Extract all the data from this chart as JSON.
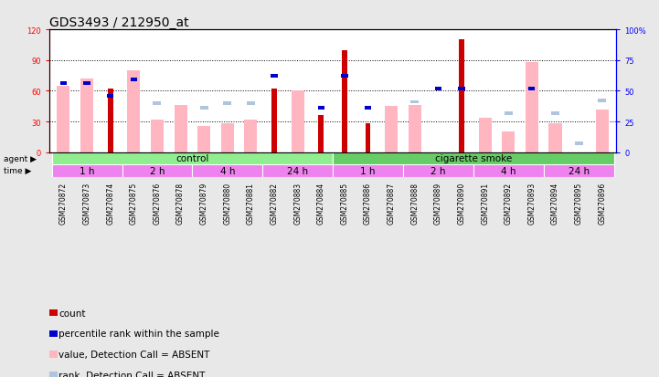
{
  "title": "GDS3493 / 212950_at",
  "samples": [
    "GSM270872",
    "GSM270873",
    "GSM270874",
    "GSM270875",
    "GSM270876",
    "GSM270878",
    "GSM270879",
    "GSM270880",
    "GSM270881",
    "GSM270882",
    "GSM270883",
    "GSM270884",
    "GSM270885",
    "GSM270886",
    "GSM270887",
    "GSM270888",
    "GSM270889",
    "GSM270890",
    "GSM270891",
    "GSM270892",
    "GSM270893",
    "GSM270894",
    "GSM270895",
    "GSM270896"
  ],
  "count": [
    0,
    0,
    62,
    0,
    0,
    0,
    0,
    0,
    0,
    62,
    0,
    36,
    100,
    28,
    0,
    0,
    0,
    110,
    0,
    0,
    0,
    0,
    0,
    0
  ],
  "percentile_rank": [
    56,
    56,
    46,
    59,
    -1,
    -1,
    -1,
    -1,
    -1,
    62,
    -1,
    36,
    62,
    36,
    -1,
    -1,
    52,
    52,
    -1,
    -1,
    52,
    -1,
    -1,
    -1
  ],
  "value_absent": [
    65,
    72,
    -1,
    80,
    32,
    46,
    26,
    28,
    32,
    -1,
    60,
    -1,
    -1,
    -1,
    45,
    46,
    -1,
    -1,
    34,
    20,
    88,
    28,
    -1,
    42
  ],
  "rank_absent": [
    -1,
    -1,
    -1,
    -1,
    40,
    -1,
    36,
    40,
    40,
    -1,
    -1,
    -1,
    -1,
    -1,
    -1,
    41,
    -1,
    -1,
    -1,
    32,
    52,
    32,
    7,
    42
  ],
  "agent_groups": [
    {
      "label": "control",
      "start": 0,
      "end": 11,
      "color": "#90EE90"
    },
    {
      "label": "cigarette smoke",
      "start": 12,
      "end": 23,
      "color": "#66CC66"
    }
  ],
  "time_groups": [
    {
      "label": "1 h",
      "start": 0,
      "end": 2,
      "color": "#EE82EE"
    },
    {
      "label": "2 h",
      "start": 3,
      "end": 5,
      "color": "#EE82EE"
    },
    {
      "label": "4 h",
      "start": 6,
      "end": 8,
      "color": "#EE82EE"
    },
    {
      "label": "24 h",
      "start": 9,
      "end": 11,
      "color": "#EE82EE"
    },
    {
      "label": "1 h",
      "start": 12,
      "end": 14,
      "color": "#EE82EE"
    },
    {
      "label": "2 h",
      "start": 15,
      "end": 17,
      "color": "#EE82EE"
    },
    {
      "label": "4 h",
      "start": 18,
      "end": 20,
      "color": "#EE82EE"
    },
    {
      "label": "24 h",
      "start": 21,
      "end": 23,
      "color": "#EE82EE"
    }
  ],
  "left_ylim": [
    0,
    120
  ],
  "left_yticks": [
    0,
    30,
    60,
    90,
    120
  ],
  "right_ylim": [
    0,
    100
  ],
  "right_yticks": [
    0,
    25,
    50,
    75,
    100
  ],
  "count_color": "#CC0000",
  "percentile_color": "#0000CC",
  "value_absent_color": "#FFB6C1",
  "rank_absent_color": "#B0C4DE",
  "bg_color": "#E8E8E8",
  "plot_bg": "#FFFFFF",
  "title_fontsize": 10,
  "tick_fontsize": 6,
  "legend_fontsize": 7.5
}
